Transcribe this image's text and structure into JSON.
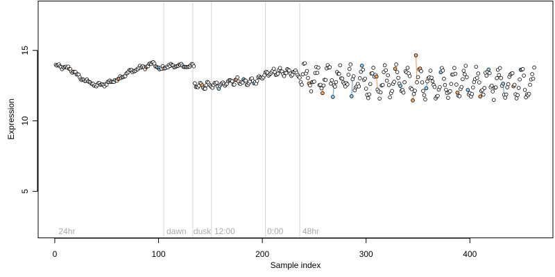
{
  "chart_data": {
    "type": "scatter",
    "title": "",
    "xlabel": "Sample index",
    "ylabel": "Expression",
    "xlim": [
      -16,
      480
    ],
    "ylim": [
      1.7,
      18.5
    ],
    "xticks": [
      0,
      100,
      200,
      300,
      400
    ],
    "yticks": [
      5,
      10,
      15
    ],
    "grid": false,
    "legend": "none",
    "colors": {
      "line_orange": "#F4A460",
      "line_blue": "#6CA6CD",
      "point_fill_default": "#FFFFFF",
      "point_fill_orange": "#F4A460",
      "point_fill_blue": "#87CEFA",
      "point_stroke": "#000000",
      "separator": "#D3D3D3",
      "annotation": "#A9A9A9"
    },
    "separators": [
      105,
      133,
      151,
      203,
      236
    ],
    "annotations": [
      {
        "x": 3,
        "text": "24hr"
      },
      {
        "x": 107,
        "text": "dawn"
      },
      {
        "x": 133,
        "text": "dusk"
      },
      {
        "x": 153,
        "text": "12:00"
      },
      {
        "x": 204,
        "text": "0:00"
      },
      {
        "x": 238,
        "text": "48hr"
      }
    ],
    "segment_kp": [
      [
        [
          1,
          13.9
        ],
        [
          8,
          13.8
        ],
        [
          14,
          13.7
        ],
        [
          20,
          13.4
        ],
        [
          25,
          13.0
        ],
        [
          32,
          12.8
        ],
        [
          40,
          12.5
        ],
        [
          48,
          12.6
        ],
        [
          55,
          12.8
        ],
        [
          62,
          13.0
        ],
        [
          70,
          13.4
        ],
        [
          80,
          13.7
        ],
        [
          90,
          13.9
        ],
        [
          96,
          14.1
        ],
        [
          101,
          13.6
        ],
        [
          105,
          13.8
        ],
        [
          110,
          13.9
        ],
        [
          120,
          13.9
        ],
        [
          130,
          13.85
        ],
        [
          134,
          13.9
        ]
      ],
      [
        [
          134,
          12.6
        ],
        [
          140,
          12.5
        ],
        [
          150,
          12.5
        ],
        [
          160,
          12.6
        ],
        [
          170,
          12.8
        ],
        [
          178,
          12.8
        ],
        [
          185,
          12.7
        ],
        [
          195,
          12.9
        ],
        [
          203,
          13.3
        ],
        [
          215,
          13.5
        ],
        [
          225,
          13.4
        ],
        [
          236,
          13.3
        ]
      ],
      [
        [
          236,
          13.0
        ],
        [
          260,
          13.0
        ],
        [
          300,
          12.9
        ],
        [
          350,
          12.7
        ],
        [
          380,
          12.6
        ],
        [
          420,
          12.6
        ],
        [
          462,
          12.6
        ]
      ]
    ],
    "wiggles": [
      {
        "start": 1,
        "end": 134,
        "amp": 0.08,
        "period": 10
      },
      {
        "start": 135,
        "end": 236,
        "amp": 0.18,
        "period": 7
      },
      {
        "start": 237,
        "end": 462,
        "amp": 0.85,
        "period": 11
      }
    ],
    "noise": [
      0.1,
      0.12,
      0.3
    ],
    "outliers": [
      [
        348,
        14.65
      ],
      [
        286,
        11.75
      ],
      [
        268,
        11.7
      ]
    ],
    "orange_indices": [
      14,
      62,
      88,
      120,
      142,
      175,
      245,
      258,
      310,
      328,
      345,
      348,
      352,
      388,
      410,
      442
    ],
    "blue_indices": [
      100,
      101,
      158,
      182,
      192,
      268,
      286,
      296,
      315,
      333,
      358,
      372,
      398,
      418,
      432,
      450
    ]
  }
}
